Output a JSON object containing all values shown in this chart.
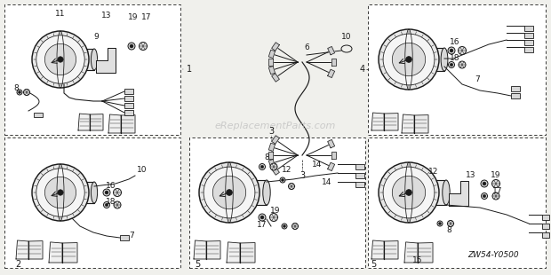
{
  "bg_color": "#f0f0ec",
  "line_color": "#1a1a1a",
  "watermark_text": "eReplacementParts.com",
  "part_number_label": "ZW54-Y0500",
  "fig_w": 6.2,
  "fig_h": 3.1
}
